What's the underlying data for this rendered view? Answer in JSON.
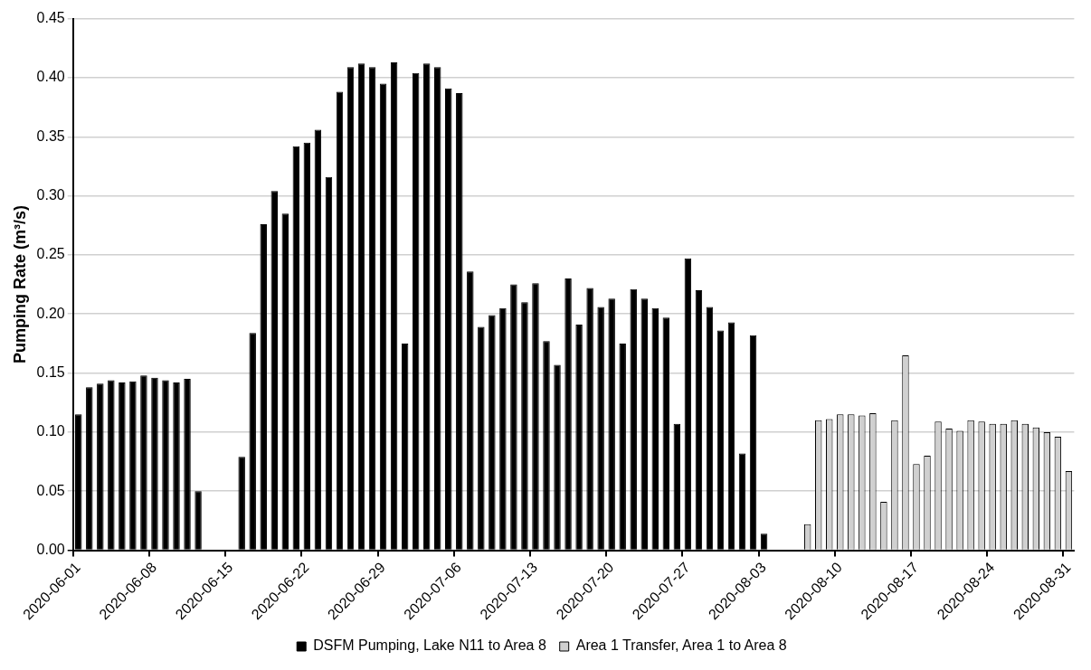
{
  "chart_data": {
    "type": "bar",
    "ylabel": "Pumping Rate (m³/s)",
    "categories": [
      "2020-06-01",
      null,
      null,
      null,
      null,
      null,
      null,
      "2020-06-08",
      null,
      null,
      null,
      null,
      null,
      null,
      "2020-06-15",
      null,
      null,
      null,
      null,
      null,
      null,
      "2020-06-22",
      null,
      null,
      null,
      null,
      null,
      null,
      "2020-06-29",
      null,
      null,
      null,
      null,
      null,
      null,
      "2020-07-06",
      null,
      null,
      null,
      null,
      null,
      null,
      "2020-07-13",
      null,
      null,
      null,
      null,
      null,
      null,
      "2020-07-20",
      null,
      null,
      null,
      null,
      null,
      null,
      "2020-07-27",
      null,
      null,
      null,
      null,
      null,
      null,
      "2020-08-03",
      null,
      null,
      null,
      null,
      null,
      null,
      "2020-08-10",
      null,
      null,
      null,
      null,
      null,
      null,
      "2020-08-17",
      null,
      null,
      null,
      null,
      null,
      null,
      "2020-08-24",
      null,
      null,
      null,
      null,
      null,
      null,
      "2020-08-31"
    ],
    "series": [
      {
        "name": "DSFM Pumping, Lake N11 to Area 8",
        "color": "#000000",
        "values": [
          0.115,
          0.138,
          0.141,
          0.144,
          0.142,
          0.143,
          0.148,
          0.146,
          0.144,
          0.142,
          0.145,
          0.05,
          null,
          null,
          null,
          0.079,
          0.184,
          0.276,
          0.304,
          0.285,
          0.342,
          0.345,
          0.356,
          0.316,
          0.388,
          0.409,
          0.412,
          0.409,
          0.395,
          0.413,
          0.175,
          0.404,
          0.412,
          0.409,
          0.391,
          0.387,
          0.236,
          0.189,
          0.199,
          0.205,
          0.225,
          0.21,
          0.226,
          0.177,
          0.157,
          0.23,
          0.191,
          0.222,
          0.206,
          0.213,
          0.175,
          0.221,
          0.213,
          0.205,
          0.197,
          0.107,
          0.247,
          0.22,
          0.206,
          0.186,
          0.193,
          0.082,
          0.182,
          0.014,
          null,
          null,
          null,
          null,
          null,
          null,
          null,
          null,
          null,
          null,
          null,
          null,
          null,
          null,
          null,
          null,
          null,
          null,
          null,
          null,
          null,
          null,
          null,
          null,
          null,
          null,
          null,
          null
        ]
      },
      {
        "name": "Area 1 Transfer, Area 1 to Area 8",
        "color": "#d0d0d0",
        "values": [
          null,
          null,
          null,
          null,
          null,
          null,
          null,
          null,
          null,
          null,
          null,
          null,
          null,
          null,
          null,
          null,
          null,
          null,
          null,
          null,
          null,
          null,
          null,
          null,
          null,
          null,
          null,
          null,
          null,
          null,
          null,
          null,
          null,
          null,
          null,
          null,
          null,
          null,
          null,
          null,
          null,
          null,
          null,
          null,
          null,
          null,
          null,
          null,
          null,
          null,
          null,
          null,
          null,
          null,
          null,
          null,
          null,
          null,
          null,
          null,
          null,
          null,
          null,
          null,
          null,
          null,
          null,
          0.022,
          0.11,
          0.111,
          0.115,
          0.115,
          0.114,
          0.116,
          0.041,
          0.11,
          0.165,
          0.073,
          0.08,
          0.109,
          0.103,
          0.101,
          0.11,
          0.109,
          0.107,
          0.107,
          0.11,
          0.107,
          0.104,
          0.1,
          0.096,
          0.067
        ]
      }
    ],
    "ylim": [
      0,
      0.45
    ],
    "yticks": [
      {
        "value": 0,
        "label": "0.00"
      },
      {
        "value": 0.05,
        "label": "0.05"
      },
      {
        "value": 0.1,
        "label": "0.10"
      },
      {
        "value": 0.15,
        "label": "0.15"
      },
      {
        "value": 0.2,
        "label": "0.20"
      },
      {
        "value": 0.25,
        "label": "0.25"
      },
      {
        "value": 0.3,
        "label": "0.30"
      },
      {
        "value": 0.35,
        "label": "0.35"
      },
      {
        "value": 0.4,
        "label": "0.40"
      },
      {
        "value": 0.45,
        "label": "0.45"
      }
    ],
    "grid": "y",
    "legend": "bottom"
  }
}
